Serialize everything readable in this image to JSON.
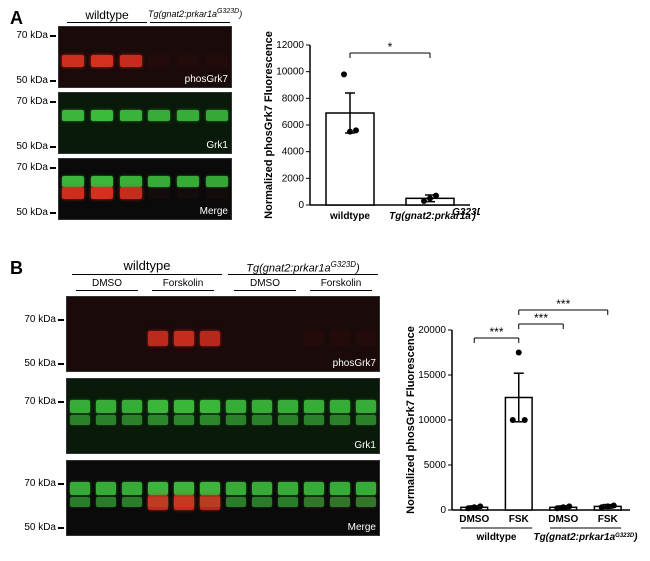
{
  "panelA": {
    "label": "A",
    "headers": {
      "left": "wildtype",
      "right": "Tg(gnat2:prkar1a^G323D)"
    },
    "mw_labels": [
      "70 kDa",
      "50 kDa",
      "70 kDa",
      "50 kDa",
      "70 kDa",
      "50 kDa"
    ],
    "blot_labels": [
      "phosGrk7",
      "Grk1",
      "Merge"
    ],
    "blot_bg": [
      "#1a0a0a",
      "#0a1a0a",
      "#0a0a0a"
    ],
    "lanes": 6,
    "bands": {
      "phosGrk7": {
        "color": "#d83020",
        "intensity": [
          0.95,
          0.98,
          0.9,
          0.05,
          0.05,
          0.05
        ]
      },
      "Grk1": {
        "color": "#40c840",
        "intensity": [
          0.9,
          0.92,
          0.88,
          0.85,
          0.85,
          0.82
        ]
      }
    },
    "chart": {
      "type": "bar",
      "ylabel": "Normalized phosGrk7 Fluorescence",
      "ylim": [
        0,
        12000
      ],
      "ytick_step": 2000,
      "categories": [
        "wildtype",
        "Tg(gnat2:prkar1a^G323D)"
      ],
      "means": [
        6900,
        500
      ],
      "errors": [
        1500,
        250
      ],
      "points": [
        [
          9800,
          5500,
          5600
        ],
        [
          300,
          500,
          700
        ]
      ],
      "sig": {
        "pairs": [
          [
            0,
            1
          ]
        ],
        "labels": [
          "*"
        ]
      }
    }
  },
  "panelB": {
    "label": "B",
    "headers": {
      "left": "wildtype",
      "right": "Tg(gnat2:prkar1a^G323D)"
    },
    "sub_headers": [
      "DMSO",
      "Forskolin",
      "DMSO",
      "Forskolin"
    ],
    "mw_labels": [
      "70 kDa",
      "50 kDa",
      "70 kDa",
      "70 kDa",
      "50 kDa"
    ],
    "blot_labels": [
      "phosGrk7",
      "Grk1",
      "Merge"
    ],
    "blot_bg": [
      "#1a0a0a",
      "#0a1a0a",
      "#0a0a0a"
    ],
    "lanes": 12,
    "bands": {
      "phosGrk7": {
        "color": "#d83020",
        "intensity": [
          0,
          0,
          0,
          0.85,
          0.9,
          0.82,
          0,
          0,
          0,
          0.05,
          0.05,
          0.05
        ]
      },
      "Grk1": {
        "color": "#40c840",
        "intensity": [
          0.85,
          0.85,
          0.85,
          0.9,
          0.9,
          0.9,
          0.85,
          0.85,
          0.85,
          0.85,
          0.85,
          0.85
        ]
      }
    },
    "chart": {
      "type": "bar",
      "ylabel": "Normalized phosGrk7 Fluorescence",
      "ylim": [
        0,
        20000
      ],
      "ytick_step": 5000,
      "categories": [
        "DMSO",
        "FSK",
        "DMSO",
        "FSK"
      ],
      "group_labels": [
        "wildtype",
        "Tg(gnat2:prkar1a^G323D)"
      ],
      "means": [
        300,
        12500,
        300,
        400
      ],
      "errors": [
        150,
        2700,
        150,
        200
      ],
      "points": [
        [
          200,
          300,
          400
        ],
        [
          10000,
          17500,
          10000
        ],
        [
          200,
          300,
          400
        ],
        [
          300,
          400,
          500
        ]
      ],
      "hatched": [
        false,
        true,
        false,
        false
      ],
      "sig": {
        "pairs": [
          [
            0,
            1
          ],
          [
            1,
            2
          ],
          [
            1,
            3
          ]
        ],
        "labels": [
          "***",
          "***",
          "***"
        ]
      }
    }
  }
}
